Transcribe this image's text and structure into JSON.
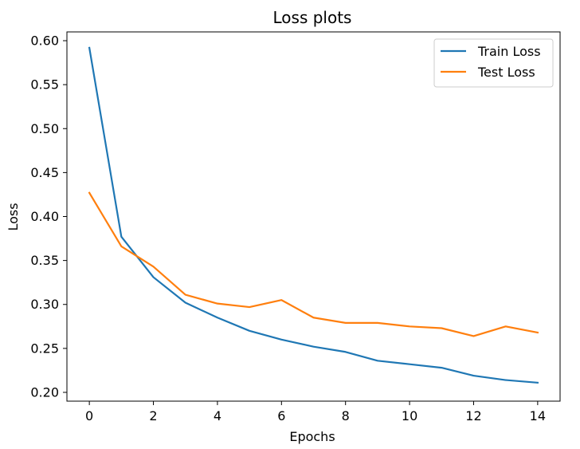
{
  "chart_data": {
    "type": "line",
    "title": "Loss plots",
    "xlabel": "Epochs",
    "ylabel": "Loss",
    "xlim": [
      -0.7,
      14.7
    ],
    "ylim": [
      0.19,
      0.61
    ],
    "xticks": [
      0,
      2,
      4,
      6,
      8,
      10,
      12,
      14
    ],
    "xtick_labels": [
      "0",
      "2",
      "4",
      "6",
      "8",
      "10",
      "12",
      "14"
    ],
    "yticks": [
      0.2,
      0.25,
      0.3,
      0.35,
      0.4,
      0.45,
      0.5,
      0.55,
      0.6
    ],
    "ytick_labels": [
      "0.20",
      "0.25",
      "0.30",
      "0.35",
      "0.40",
      "0.45",
      "0.50",
      "0.55",
      "0.60"
    ],
    "grid": false,
    "legend_position": "top-right",
    "x": [
      0,
      1,
      2,
      3,
      4,
      5,
      6,
      7,
      8,
      9,
      10,
      11,
      12,
      13,
      14
    ],
    "series": [
      {
        "name": "Train Loss",
        "color": "#1f77b4",
        "values": [
          0.592,
          0.377,
          0.331,
          0.302,
          0.285,
          0.27,
          0.26,
          0.252,
          0.246,
          0.236,
          0.232,
          0.228,
          0.219,
          0.214,
          0.211
        ]
      },
      {
        "name": "Test Loss",
        "color": "#ff7f0e",
        "values": [
          0.427,
          0.366,
          0.343,
          0.311,
          0.301,
          0.297,
          0.305,
          0.285,
          0.279,
          0.279,
          0.275,
          0.273,
          0.264,
          0.275,
          0.268
        ]
      }
    ]
  }
}
